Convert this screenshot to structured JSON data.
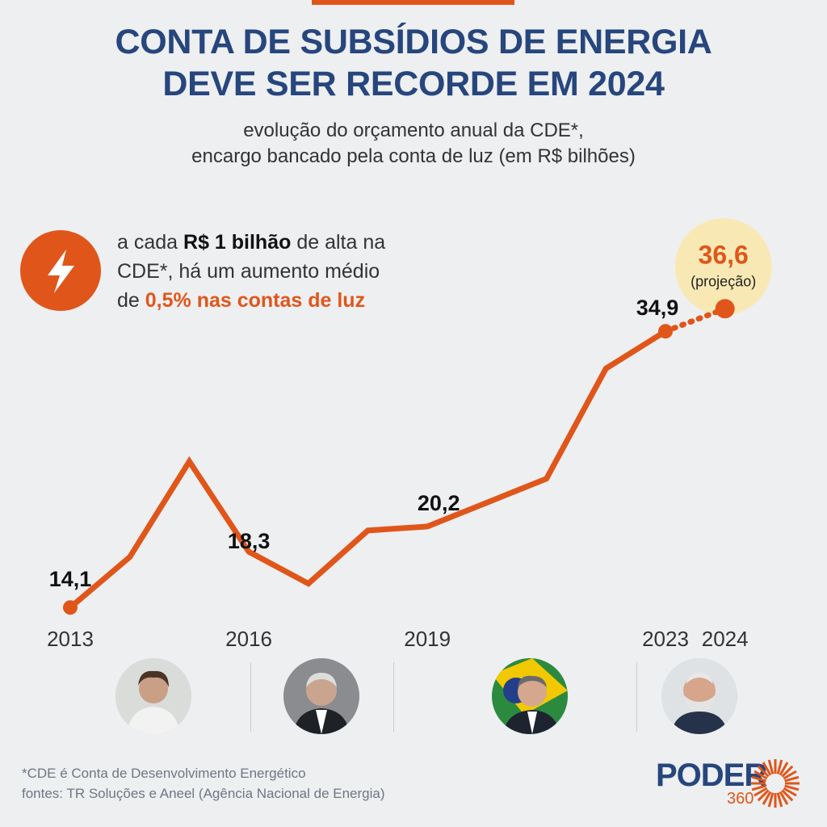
{
  "header": {
    "title_line1": "CONTA DE SUBSÍDIOS DE ENERGIA",
    "title_line2": "DEVE SER RECORDE EM 2024",
    "subtitle_line1": "evolução do orçamento anual da CDE*,",
    "subtitle_line2": "encargo bancado pela conta de luz (em R$ bilhões)"
  },
  "callout": {
    "icon": "lightning-bolt-icon",
    "part1": "a cada ",
    "bold": "R$ 1 bilhão",
    "part2": " de alta na",
    "line2": "CDE*, há um aumento médio",
    "part3": "de ",
    "highlight": "0,5% nas contas de luz"
  },
  "colors": {
    "accent": "#e0561a",
    "title": "#26467d",
    "projection_bubble": "#f8e9b4",
    "background": "#eeeff1"
  },
  "chart_data": {
    "type": "line",
    "x": [
      2013,
      2014,
      2015,
      2016,
      2017,
      2018,
      2019,
      2020,
      2021,
      2022,
      2023,
      2024
    ],
    "values": [
      14.1,
      17.9,
      25.1,
      18.3,
      15.9,
      19.9,
      20.2,
      22.0,
      23.8,
      32.1,
      34.9,
      36.6
    ],
    "projected_from": 2023,
    "tick_labels": [
      "2013",
      "2016",
      "2019",
      "2023",
      "2024"
    ],
    "data_labels": [
      {
        "year": 2013,
        "text": "14,1"
      },
      {
        "year": 2016,
        "text": "18,3"
      },
      {
        "year": 2019,
        "text": "20,2"
      },
      {
        "year": 2023,
        "text": "34,9"
      },
      {
        "year": 2024,
        "text": "36,6",
        "note": "(projeção)"
      }
    ],
    "grid": false,
    "legend": "none"
  },
  "footer": {
    "note": "*CDE é Conta de Desenvolvimento Energético",
    "sources": "fontes: TR Soluções e Aneel (Agência Nacional de Energia)"
  },
  "logo": {
    "name": "PODER",
    "number": "360"
  }
}
